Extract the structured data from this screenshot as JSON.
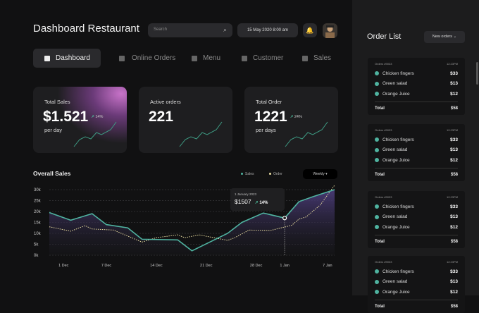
{
  "header": {
    "title": "Dashboard Restaurant",
    "search_placeholder": "Search",
    "datetime": "15 May 2020 8:00 am",
    "icons": [
      "search-icon",
      "bell-icon",
      "avatar"
    ]
  },
  "nav": [
    {
      "label": "Dashboard",
      "icon": "dashboard-icon",
      "active": true
    },
    {
      "label": "Online Orders",
      "icon": "orders-icon"
    },
    {
      "label": "Menu",
      "icon": "menu-icon"
    },
    {
      "label": "Customer",
      "icon": "users-icon"
    },
    {
      "label": "Sales",
      "icon": "bar-chart-icon"
    }
  ],
  "cards": [
    {
      "label": "Total Sales",
      "value": "$1.521",
      "change": "14%",
      "sub": "per day"
    },
    {
      "label": "Active orders",
      "value": "221"
    },
    {
      "label": "Total Order",
      "value": "1221",
      "change": "24%",
      "sub": "per days"
    }
  ],
  "colors": {
    "accent": "#4fb3a0",
    "order_line": "#e8dca0",
    "area": "#4a3b78",
    "bg": "#111112",
    "panel": "#1c1c1d"
  },
  "chart_data": {
    "type": "line",
    "title": "Overall Sales",
    "legend": [
      "Sales",
      "Order"
    ],
    "legend_position": "top-right",
    "period": "Weekly",
    "ylim": [
      0,
      30
    ],
    "yticks": [
      "0k",
      "5k",
      "10k",
      "15k",
      "20k",
      "25k",
      "30k"
    ],
    "xticks": [
      {
        "label": "1 Dec",
        "date": "2022-12-01"
      },
      {
        "label": "7 Dec",
        "date": "2022-12-07"
      },
      {
        "label": "14 Dec",
        "date": "2022-12-14"
      },
      {
        "label": "21 Dec",
        "date": "2022-12-21"
      },
      {
        "label": "28 Dec",
        "date": "2022-12-28"
      },
      {
        "label": "1 Jan",
        "date": "2023-01-01"
      },
      {
        "label": "7 Jan",
        "date": "2023-01-07"
      }
    ],
    "xlim": [
      "2022-11-29",
      "2023-01-08"
    ],
    "grid": true,
    "series": [
      {
        "name": "Sales",
        "style": "solid-area",
        "points": [
          [
            "2022-11-29",
            19.5
          ],
          [
            "2022-12-02",
            16
          ],
          [
            "2022-12-05",
            19
          ],
          [
            "2022-12-07",
            14
          ],
          [
            "2022-12-10",
            12.5
          ],
          [
            "2022-12-12",
            7.3
          ],
          [
            "2022-12-17",
            7
          ],
          [
            "2022-12-19",
            2
          ],
          [
            "2022-12-24",
            10
          ],
          [
            "2022-12-26",
            15
          ],
          [
            "2022-12-29",
            19.3
          ],
          [
            "2023-01-01",
            17
          ],
          [
            "2023-01-03",
            24.5
          ],
          [
            "2023-01-05",
            26.8
          ],
          [
            "2023-01-08",
            30
          ]
        ]
      },
      {
        "name": "Order",
        "style": "dashed",
        "points": [
          [
            "2022-11-29",
            13
          ],
          [
            "2022-12-02",
            11
          ],
          [
            "2022-12-04",
            13.5
          ],
          [
            "2022-12-05",
            12
          ],
          [
            "2022-12-08",
            11.5
          ],
          [
            "2022-12-12",
            6
          ],
          [
            "2022-12-14",
            8
          ],
          [
            "2022-12-17",
            9.3
          ],
          [
            "2022-12-18",
            8
          ],
          [
            "2022-12-20",
            9.3
          ],
          [
            "2022-12-24",
            6.8
          ],
          [
            "2022-12-25",
            8
          ],
          [
            "2022-12-27",
            11.5
          ],
          [
            "2022-12-30",
            11.3
          ],
          [
            "2023-01-02",
            13.7
          ],
          [
            "2023-01-03",
            16.5
          ],
          [
            "2023-01-04",
            17.5
          ],
          [
            "2023-01-06",
            23
          ],
          [
            "2023-01-08",
            32
          ]
        ]
      }
    ],
    "tooltip": {
      "date": "1 January 2023",
      "value": "$1507",
      "change": "14%",
      "marker_date": "2023-01-01",
      "marker_value": 17
    }
  },
  "order_list": {
    "title": "Order List",
    "filter": "New orders",
    "orders": [
      {
        "id": "Orders #9033",
        "time": "12:23PM",
        "items": [
          {
            "name": "Chicken fingers",
            "price": "$33"
          },
          {
            "name": "Green salad",
            "price": "$13"
          },
          {
            "name": "Orange Juice",
            "price": "$12"
          }
        ],
        "total_label": "Total",
        "total": "$58"
      },
      {
        "id": "Orders #9033",
        "time": "12:23PM",
        "items": [
          {
            "name": "Chicken fingers",
            "price": "$33"
          },
          {
            "name": "Green salad",
            "price": "$13"
          },
          {
            "name": "Orange Juice",
            "price": "$12"
          }
        ],
        "total_label": "Total",
        "total": "$58"
      },
      {
        "id": "Orders #9033",
        "time": "12:23PM",
        "items": [
          {
            "name": "Chicken fingers",
            "price": "$33"
          },
          {
            "name": "Green salad",
            "price": "$13"
          },
          {
            "name": "Orange Juice",
            "price": "$12"
          }
        ],
        "total_label": "Total",
        "total": "$58"
      },
      {
        "id": "Orders #9033",
        "time": "12:23PM",
        "items": [
          {
            "name": "Chicken fingers",
            "price": "$33"
          },
          {
            "name": "Green salad",
            "price": "$13"
          },
          {
            "name": "Orange Juice",
            "price": "$12"
          }
        ],
        "total_label": "Total",
        "total": "$58"
      }
    ]
  }
}
